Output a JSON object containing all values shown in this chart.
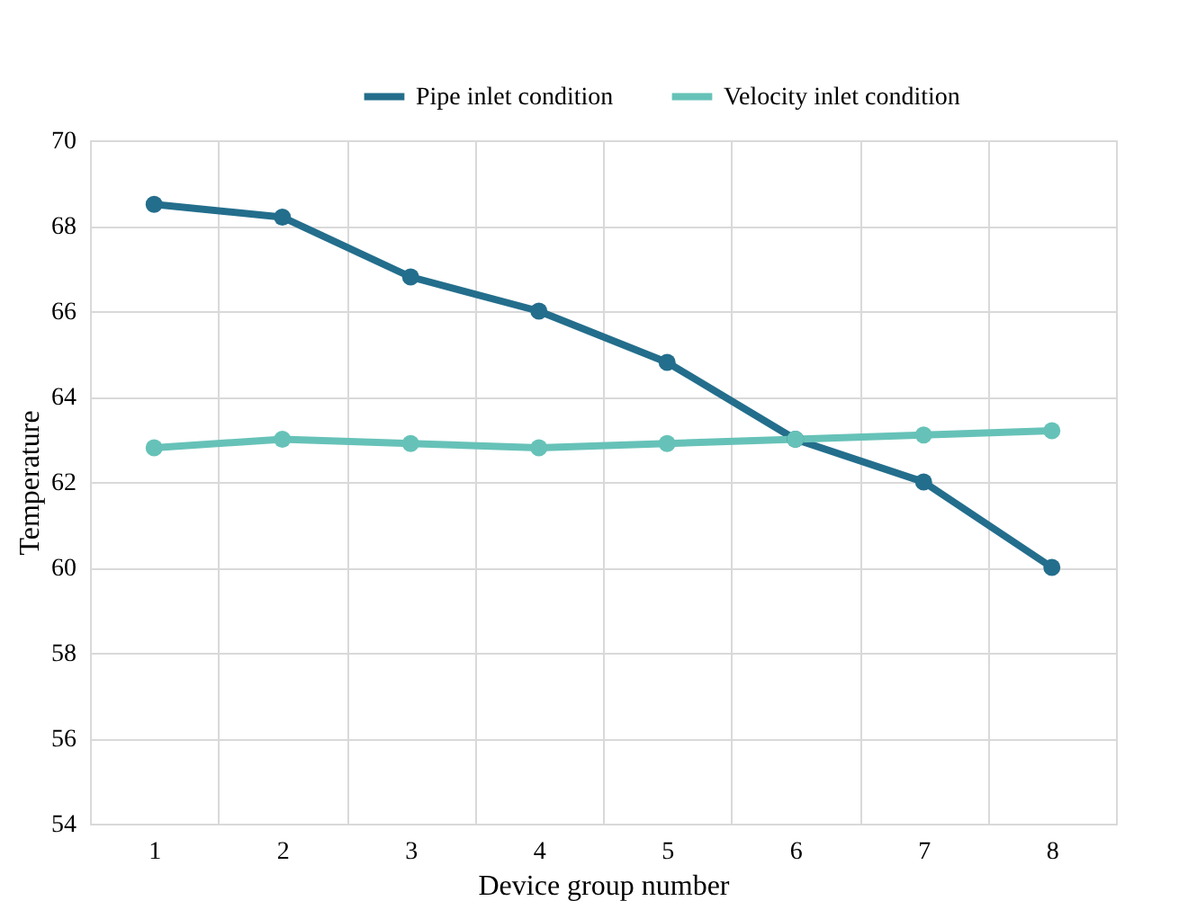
{
  "chart_data": {
    "type": "line",
    "xlabel": "Device group number",
    "ylabel": "Temperature",
    "categories": [
      "1",
      "2",
      "3",
      "4",
      "5",
      "6",
      "7",
      "8"
    ],
    "series": [
      {
        "name": "Pipe inlet condition",
        "color": "#236e8c",
        "values": [
          68.5,
          68.2,
          66.8,
          66.0,
          64.8,
          63.0,
          62.0,
          60.0
        ]
      },
      {
        "name": "Velocity inlet condition",
        "color": "#66c2b8",
        "values": [
          62.8,
          63.0,
          62.9,
          62.8,
          62.9,
          63.0,
          63.1,
          63.2
        ]
      }
    ],
    "ylim": [
      54,
      70
    ],
    "yticks": [
      54,
      56,
      58,
      60,
      62,
      64,
      66,
      68,
      70
    ],
    "grid": true,
    "legend": "top right",
    "marker": "circle",
    "line_style": "solid"
  }
}
